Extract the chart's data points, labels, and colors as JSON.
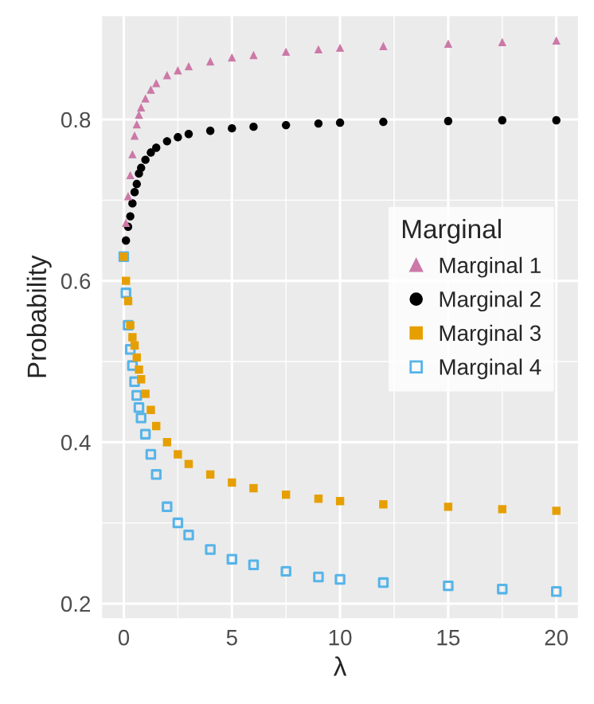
{
  "chart_data": {
    "type": "scatter",
    "xlabel": "λ",
    "ylabel": "Probability",
    "legend_title": "Marginal",
    "xlim": [
      -1,
      21
    ],
    "xticks": [
      0,
      5,
      10,
      15,
      20
    ],
    "ylim": [
      0.182,
      0.928
    ],
    "yticks": [
      0.2,
      0.4,
      0.6,
      0.8
    ],
    "grid": true,
    "legend": "right",
    "series": [
      {
        "name": "Marginal 1",
        "color": "#cc79a7",
        "marker": "triangle",
        "x": [
          0.1,
          0.2,
          0.3,
          0.4,
          0.5,
          0.6,
          0.7,
          0.8,
          1,
          1.25,
          1.5,
          2,
          2.5,
          3,
          4,
          5,
          6,
          7.5,
          9,
          10,
          12,
          15,
          17.5,
          20
        ],
        "values": [
          0.672,
          0.705,
          0.731,
          0.757,
          0.78,
          0.794,
          0.806,
          0.815,
          0.826,
          0.837,
          0.845,
          0.855,
          0.861,
          0.866,
          0.872,
          0.877,
          0.88,
          0.884,
          0.887,
          0.889,
          0.891,
          0.894,
          0.896,
          0.898
        ]
      },
      {
        "name": "Marginal 2",
        "color": "#000000",
        "marker": "circle",
        "x": [
          0.1,
          0.2,
          0.3,
          0.4,
          0.5,
          0.6,
          0.7,
          0.8,
          1,
          1.25,
          1.5,
          2,
          2.5,
          3,
          4,
          5,
          6,
          7.5,
          9,
          10,
          12,
          15,
          17.5,
          20
        ],
        "values": [
          0.65,
          0.667,
          0.68,
          0.696,
          0.71,
          0.72,
          0.733,
          0.74,
          0.75,
          0.759,
          0.765,
          0.773,
          0.778,
          0.782,
          0.786,
          0.789,
          0.791,
          0.793,
          0.795,
          0.796,
          0.797,
          0.798,
          0.799,
          0.799
        ]
      },
      {
        "name": "Marginal 3",
        "color": "#e69f00",
        "marker": "square",
        "x": [
          0,
          0.1,
          0.2,
          0.3,
          0.4,
          0.5,
          0.6,
          0.7,
          0.8,
          1,
          1.25,
          1.5,
          2,
          2.5,
          3,
          4,
          5,
          6,
          7.5,
          9,
          10,
          12,
          15,
          17.5,
          20
        ],
        "values": [
          0.63,
          0.6,
          0.575,
          0.545,
          0.53,
          0.52,
          0.505,
          0.49,
          0.478,
          0.46,
          0.44,
          0.42,
          0.4,
          0.385,
          0.373,
          0.36,
          0.35,
          0.343,
          0.335,
          0.33,
          0.327,
          0.323,
          0.32,
          0.317,
          0.315
        ]
      },
      {
        "name": "Marginal 4",
        "color": "#56b4e9",
        "marker": "square_open",
        "x": [
          0,
          0.1,
          0.2,
          0.3,
          0.4,
          0.5,
          0.6,
          0.7,
          0.8,
          1,
          1.25,
          1.5,
          2,
          2.5,
          3,
          4,
          5,
          6,
          7.5,
          9,
          10,
          12,
          15,
          17.5,
          20
        ],
        "values": [
          0.63,
          0.585,
          0.545,
          0.515,
          0.495,
          0.475,
          0.458,
          0.443,
          0.43,
          0.41,
          0.385,
          0.36,
          0.32,
          0.3,
          0.285,
          0.267,
          0.255,
          0.248,
          0.24,
          0.233,
          0.23,
          0.226,
          0.222,
          0.218,
          0.215
        ]
      }
    ]
  }
}
